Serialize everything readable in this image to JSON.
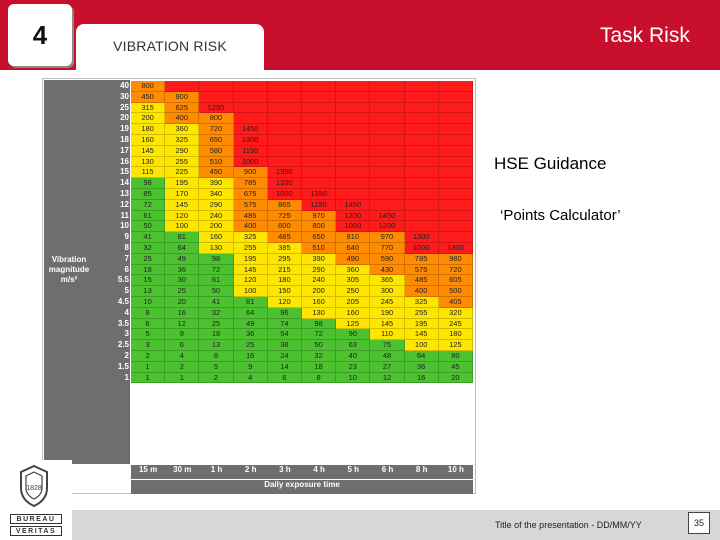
{
  "header": {
    "slide_number": "4",
    "section_title": "VIBRATION RISK",
    "page_title": "Task Risk"
  },
  "content": {
    "hse_guidance": "HSE Guidance",
    "points_calculator": "‘Points Calculator’"
  },
  "footer": {
    "presentation_title": "Title of the presentation - DD/MM/YY",
    "page_number": "35"
  },
  "logo": {
    "word_top": "BUREAU",
    "word_bottom": "VERITAS",
    "year_text": "1828"
  },
  "colors": {
    "brand_red": "#c8102e",
    "zone_red": "#ff1b1b",
    "zone_orange": "#ff8c00",
    "zone_yellow": "#ffe600",
    "zone_green": "#4cc230",
    "panel_grey": "#6e6e6e"
  },
  "chart_data": {
    "type": "table",
    "ylabel": "Vibration magnitude m/s²",
    "xlabel": "Daily exposure time",
    "columns": [
      "15 m",
      "30 m",
      "1 h",
      "2 h",
      "3 h",
      "4 h",
      "5 h",
      "6 h",
      "8 h",
      "10 h"
    ],
    "rows": [
      {
        "label": "40",
        "values": [
          "800",
          "",
          "",
          "",
          "",
          "",
          "",
          "",
          "",
          ""
        ]
      },
      {
        "label": "30",
        "values": [
          "450",
          "900",
          "",
          "",
          "",
          "",
          "",
          "",
          "",
          ""
        ]
      },
      {
        "label": "25",
        "values": [
          "315",
          "625",
          "1250",
          "",
          "",
          "",
          "",
          "",
          "",
          ""
        ]
      },
      {
        "label": "20",
        "values": [
          "200",
          "400",
          "800",
          "",
          "",
          "",
          "",
          "",
          "",
          ""
        ]
      },
      {
        "label": "19",
        "values": [
          "180",
          "360",
          "720",
          "1450",
          "",
          "",
          "",
          "",
          "",
          ""
        ]
      },
      {
        "label": "18",
        "values": [
          "160",
          "325",
          "650",
          "1300",
          "",
          "",
          "",
          "",
          "",
          ""
        ]
      },
      {
        "label": "17",
        "values": [
          "145",
          "290",
          "580",
          "1150",
          "",
          "",
          "",
          "",
          "",
          ""
        ]
      },
      {
        "label": "16",
        "values": [
          "130",
          "255",
          "510",
          "1000",
          "",
          "",
          "",
          "",
          "",
          ""
        ]
      },
      {
        "label": "15",
        "values": [
          "115",
          "225",
          "450",
          "900",
          "1350",
          "",
          "",
          "",
          "",
          ""
        ]
      },
      {
        "label": "14",
        "values": [
          "98",
          "195",
          "390",
          "785",
          "1200",
          "",
          "",
          "",
          "",
          ""
        ]
      },
      {
        "label": "13",
        "values": [
          "85",
          "170",
          "340",
          "675",
          "1000",
          "1350",
          "",
          "",
          "",
          ""
        ]
      },
      {
        "label": "12",
        "values": [
          "72",
          "145",
          "290",
          "575",
          "865",
          "1150",
          "1450",
          "",
          "",
          ""
        ]
      },
      {
        "label": "11",
        "values": [
          "61",
          "120",
          "240",
          "485",
          "725",
          "970",
          "1200",
          "1450",
          "",
          ""
        ]
      },
      {
        "label": "10",
        "values": [
          "50",
          "100",
          "200",
          "400",
          "600",
          "800",
          "1000",
          "1200",
          "",
          ""
        ]
      },
      {
        "label": "9",
        "values": [
          "41",
          "81",
          "160",
          "325",
          "485",
          "650",
          "810",
          "970",
          "1300",
          ""
        ]
      },
      {
        "label": "8",
        "values": [
          "32",
          "64",
          "130",
          "255",
          "385",
          "510",
          "640",
          "770",
          "1000",
          "1300"
        ]
      },
      {
        "label": "7",
        "values": [
          "25",
          "49",
          "98",
          "195",
          "295",
          "390",
          "490",
          "590",
          "785",
          "980"
        ]
      },
      {
        "label": "6",
        "values": [
          "18",
          "36",
          "72",
          "145",
          "215",
          "290",
          "360",
          "430",
          "575",
          "720"
        ]
      },
      {
        "label": "5.5",
        "values": [
          "15",
          "30",
          "61",
          "120",
          "180",
          "240",
          "305",
          "365",
          "485",
          "605"
        ]
      },
      {
        "label": "5",
        "values": [
          "13",
          "25",
          "50",
          "100",
          "150",
          "200",
          "250",
          "300",
          "400",
          "500"
        ]
      },
      {
        "label": "4.5",
        "values": [
          "10",
          "20",
          "41",
          "81",
          "120",
          "160",
          "205",
          "245",
          "325",
          "405"
        ]
      },
      {
        "label": "4",
        "values": [
          "8",
          "16",
          "32",
          "64",
          "96",
          "130",
          "160",
          "190",
          "255",
          "320"
        ]
      },
      {
        "label": "3.5",
        "values": [
          "6",
          "12",
          "25",
          "49",
          "74",
          "98",
          "125",
          "145",
          "195",
          "245"
        ]
      },
      {
        "label": "3",
        "values": [
          "5",
          "9",
          "18",
          "36",
          "54",
          "72",
          "90",
          "110",
          "145",
          "180"
        ]
      },
      {
        "label": "2.5",
        "values": [
          "3",
          "6",
          "13",
          "25",
          "38",
          "50",
          "63",
          "75",
          "100",
          "125"
        ]
      },
      {
        "label": "2",
        "values": [
          "2",
          "4",
          "8",
          "16",
          "24",
          "32",
          "40",
          "48",
          "64",
          "80"
        ]
      },
      {
        "label": "1.5",
        "values": [
          "1",
          "2",
          "5",
          "9",
          "14",
          "18",
          "23",
          "27",
          "36",
          "45"
        ]
      },
      {
        "label": "1",
        "values": [
          "1",
          "1",
          "2",
          "4",
          "6",
          "8",
          "10",
          "12",
          "16",
          "20"
        ]
      }
    ],
    "zones": [
      "green",
      "yellow",
      "orange",
      "red"
    ]
  }
}
